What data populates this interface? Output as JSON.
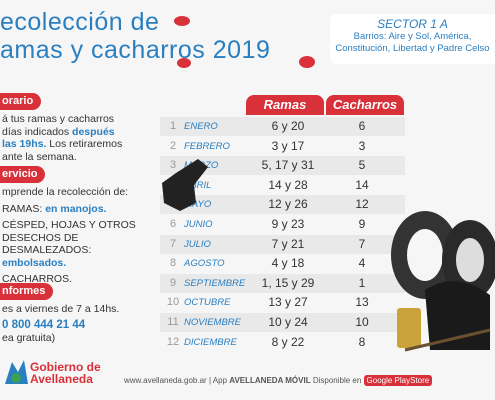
{
  "header": {
    "title_line1": "ecolección de",
    "title_line2": "amas y cacharros 2019"
  },
  "sector": {
    "title": "SECTOR 1 A",
    "neighborhoods_line1": "Barrios: Aire y Sol, América,",
    "neighborhoods_line2": "Constitución, Libertad y Padre Celso"
  },
  "sections": [
    {
      "heading": "orario",
      "lines": [
        [
          "á tus ramas y cacharros"
        ],
        [
          "días indicados ",
          "después"
        ],
        [
          "las 19hs.",
          " Los retiraremos"
        ],
        [
          "ante la semana."
        ]
      ]
    },
    {
      "heading": "ervicio",
      "lines": [
        [
          "mprende la recolección de:"
        ],
        [
          "RAMAS: ",
          "en manojos."
        ],
        [
          "CÉSPED, HOJAS Y OTROS"
        ],
        [
          "DESECHOS DE"
        ],
        [
          "DESMALEZADOS:"
        ],
        [
          "embolsados."
        ],
        [
          "CACHARROS."
        ]
      ]
    },
    {
      "heading": "nformes",
      "lines": [
        [
          "es a viernes de 7 a 14hs."
        ],
        [
          "0 800 444 21 44"
        ],
        [
          "ea gratuita)"
        ]
      ]
    }
  ],
  "table": {
    "columns": [
      "Ramas",
      "Cacharros"
    ],
    "rows": [
      [
        "1",
        "ENERO",
        "6 y 20",
        "6"
      ],
      [
        "2",
        "FEBRERO",
        "3 y 17",
        "3"
      ],
      [
        "3",
        "MARZO",
        "5, 17 y 31",
        "5"
      ],
      [
        "4",
        "ABRIL",
        "14 y 28",
        "14"
      ],
      [
        "5",
        "MAYO",
        "12 y 26",
        "12"
      ],
      [
        "6",
        "JUNIO",
        "9 y 23",
        "9"
      ],
      [
        "7",
        "JULIO",
        "7 y 21",
        "7"
      ],
      [
        "8",
        "AGOSTO",
        "4 y 18",
        "4"
      ],
      [
        "9",
        "SEPTIEMBRE",
        "1, 15 y 29",
        "1"
      ],
      [
        "10",
        "OCTUBRE",
        "13 y 27",
        "13"
      ],
      [
        "11",
        "NOVIEMBRE",
        "10 y 24",
        "10"
      ],
      [
        "12",
        "DICIEMBRE",
        "8 y 22",
        "8"
      ]
    ]
  },
  "footer": {
    "logo_line1": "Gobierno de",
    "logo_line2": "Avellaneda",
    "web": "www.avellaneda.gob.ar | App ",
    "app": "AVELLANEDA MÓVIL",
    "available": " Disponible en ",
    "store": "Google PlayStore"
  }
}
